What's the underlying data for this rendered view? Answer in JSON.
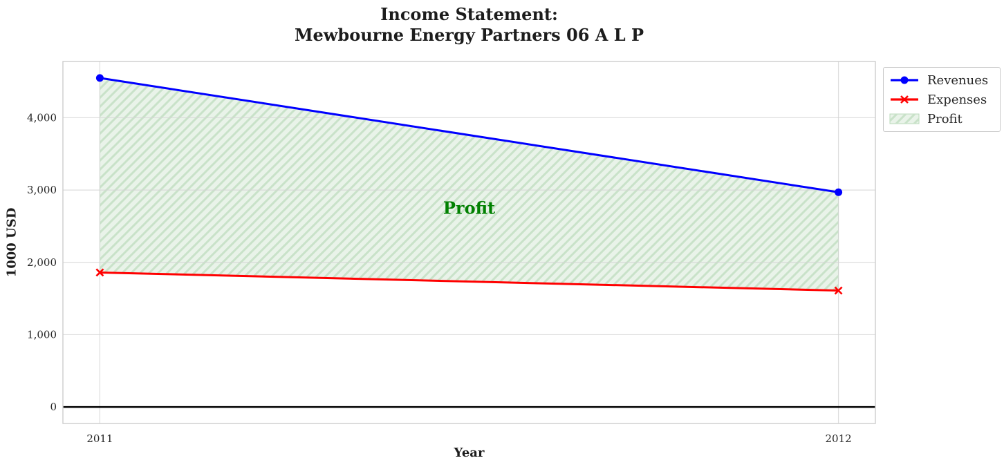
{
  "chart_data": {
    "type": "line",
    "title": "Income Statement:\nMewbourne Energy Partners 06 A L P",
    "title_lines": [
      "Income Statement:",
      "Mewbourne Energy Partners 06 A L P"
    ],
    "xlabel": "Year",
    "ylabel": "1000 USD",
    "x": [
      2011,
      2012
    ],
    "x_tick_labels": [
      "2011",
      "2012"
    ],
    "yticks": [
      0,
      1000,
      2000,
      3000,
      4000
    ],
    "ytick_labels": [
      "0",
      "1,000",
      "2,000",
      "3,000",
      "4,000"
    ],
    "xlim": [
      2010.95,
      2012.05
    ],
    "ylim": [
      -228,
      4778
    ],
    "grid": true,
    "zero_line": true,
    "series": [
      {
        "name": "Revenues",
        "values": [
          4550,
          2970
        ],
        "color": "#0000ff",
        "marker": "circle",
        "linewidth": 3
      },
      {
        "name": "Expenses",
        "values": [
          1860,
          1610
        ],
        "color": "#ff0000",
        "marker": "x",
        "linewidth": 3
      }
    ],
    "fill_between": {
      "name": "Profit",
      "upper_series": "Revenues",
      "lower_series": "Expenses",
      "profit_values": [
        2690,
        1360
      ],
      "fill_color": "#e9f3e9",
      "hatch_color": "#c9e2c9",
      "edge_color": "#b9d9b9",
      "hatch": "///"
    },
    "annotation": {
      "text": "Profit",
      "x": 2011.5,
      "y": 2750,
      "color": "#008000"
    },
    "legend": {
      "position": "upper-right-outside",
      "items": [
        {
          "label": "Revenues",
          "type": "line",
          "marker": "circle",
          "color": "#0000ff"
        },
        {
          "label": "Expenses",
          "type": "line",
          "marker": "x",
          "color": "#ff0000"
        },
        {
          "label": "Profit",
          "type": "patch",
          "fill_color": "#e9f3e9",
          "hatch_color": "#c9e2c9",
          "edge_color": "#b9d9b9"
        }
      ]
    },
    "colors": {
      "grid": "#d4d4d4",
      "axes_border": "#cccccc",
      "zero_line": "#000000",
      "tick_text": "#262626",
      "title_text": "#1c1c1c"
    }
  }
}
